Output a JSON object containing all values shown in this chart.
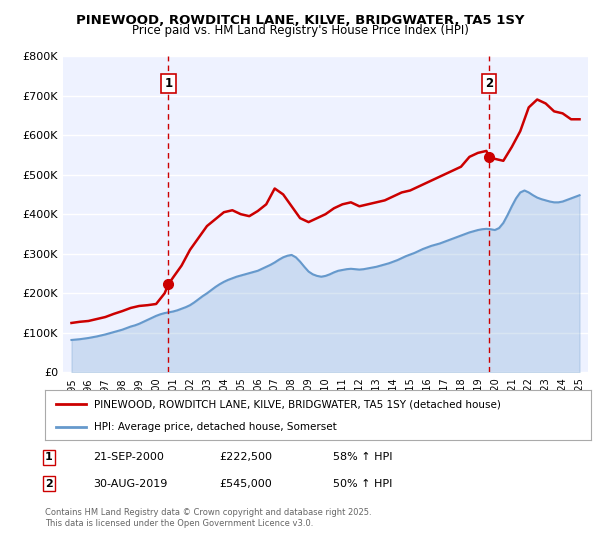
{
  "title": "PINEWOOD, ROWDITCH LANE, KILVE, BRIDGWATER, TA5 1SY",
  "subtitle": "Price paid vs. HM Land Registry's House Price Index (HPI)",
  "hpi_label": "HPI: Average price, detached house, Somerset",
  "property_label": "PINEWOOD, ROWDITCH LANE, KILVE, BRIDGWATER, TA5 1SY (detached house)",
  "footnote": "Contains HM Land Registry data © Crown copyright and database right 2025.\nThis data is licensed under the Open Government Licence v3.0.",
  "transaction1_date": "21-SEP-2000",
  "transaction1_price": "£222,500",
  "transaction1_hpi": "58% ↑ HPI",
  "transaction2_date": "30-AUG-2019",
  "transaction2_price": "£545,000",
  "transaction2_hpi": "50% ↑ HPI",
  "marker1_x": 2000.72,
  "marker1_y": 222500,
  "marker2_x": 2019.66,
  "marker2_y": 545000,
  "vline1_x": 2000.72,
  "vline2_x": 2019.66,
  "property_color": "#cc0000",
  "hpi_color": "#6699cc",
  "plot_bg_color": "#eef2ff",
  "ylim": [
    0,
    800000
  ],
  "xlim": [
    1994.5,
    2025.5
  ],
  "ytick_vals": [
    0,
    100000,
    200000,
    300000,
    400000,
    500000,
    600000,
    700000,
    800000
  ],
  "ytick_labels": [
    "£0",
    "£100K",
    "£200K",
    "£300K",
    "£400K",
    "£500K",
    "£600K",
    "£700K",
    "£800K"
  ],
  "xtick_vals": [
    1995,
    1996,
    1997,
    1998,
    1999,
    2000,
    2001,
    2002,
    2003,
    2004,
    2005,
    2006,
    2007,
    2008,
    2009,
    2010,
    2011,
    2012,
    2013,
    2014,
    2015,
    2016,
    2017,
    2018,
    2019,
    2020,
    2021,
    2022,
    2023,
    2024,
    2025
  ],
  "hpi_x": [
    1995.0,
    1995.25,
    1995.5,
    1995.75,
    1996.0,
    1996.25,
    1996.5,
    1996.75,
    1997.0,
    1997.25,
    1997.5,
    1997.75,
    1998.0,
    1998.25,
    1998.5,
    1998.75,
    1999.0,
    1999.25,
    1999.5,
    1999.75,
    2000.0,
    2000.25,
    2000.5,
    2000.75,
    2001.0,
    2001.25,
    2001.5,
    2001.75,
    2002.0,
    2002.25,
    2002.5,
    2002.75,
    2003.0,
    2003.25,
    2003.5,
    2003.75,
    2004.0,
    2004.25,
    2004.5,
    2004.75,
    2005.0,
    2005.25,
    2005.5,
    2005.75,
    2006.0,
    2006.25,
    2006.5,
    2006.75,
    2007.0,
    2007.25,
    2007.5,
    2007.75,
    2008.0,
    2008.25,
    2008.5,
    2008.75,
    2009.0,
    2009.25,
    2009.5,
    2009.75,
    2010.0,
    2010.25,
    2010.5,
    2010.75,
    2011.0,
    2011.25,
    2011.5,
    2011.75,
    2012.0,
    2012.25,
    2012.5,
    2012.75,
    2013.0,
    2013.25,
    2013.5,
    2013.75,
    2014.0,
    2014.25,
    2014.5,
    2014.75,
    2015.0,
    2015.25,
    2015.5,
    2015.75,
    2016.0,
    2016.25,
    2016.5,
    2016.75,
    2017.0,
    2017.25,
    2017.5,
    2017.75,
    2018.0,
    2018.25,
    2018.5,
    2018.75,
    2019.0,
    2019.25,
    2019.5,
    2019.75,
    2020.0,
    2020.25,
    2020.5,
    2020.75,
    2021.0,
    2021.25,
    2021.5,
    2021.75,
    2022.0,
    2022.25,
    2022.5,
    2022.75,
    2023.0,
    2023.25,
    2023.5,
    2023.75,
    2024.0,
    2024.25,
    2024.5,
    2024.75,
    2025.0
  ],
  "hpi_y": [
    82000,
    83000,
    84000,
    85500,
    87000,
    89000,
    91000,
    93500,
    96000,
    99000,
    102000,
    105000,
    108000,
    112000,
    116000,
    119000,
    123000,
    128000,
    133000,
    138000,
    143000,
    147000,
    150000,
    152000,
    154000,
    157000,
    161000,
    165000,
    170000,
    177000,
    185000,
    193000,
    200000,
    208000,
    216000,
    223000,
    229000,
    234000,
    238000,
    242000,
    245000,
    248000,
    251000,
    254000,
    257000,
    262000,
    267000,
    272000,
    278000,
    285000,
    291000,
    295000,
    297000,
    291000,
    280000,
    267000,
    255000,
    248000,
    244000,
    242000,
    244000,
    248000,
    253000,
    257000,
    259000,
    261000,
    262000,
    261000,
    260000,
    261000,
    263000,
    265000,
    267000,
    270000,
    273000,
    276000,
    280000,
    284000,
    289000,
    294000,
    298000,
    302000,
    307000,
    312000,
    316000,
    320000,
    323000,
    326000,
    330000,
    334000,
    338000,
    342000,
    346000,
    350000,
    354000,
    357000,
    360000,
    362000,
    363000,
    362000,
    360000,
    365000,
    378000,
    398000,
    420000,
    440000,
    455000,
    460000,
    455000,
    448000,
    442000,
    438000,
    435000,
    432000,
    430000,
    430000,
    432000,
    436000,
    440000,
    444000,
    448000
  ],
  "property_x": [
    1995.0,
    1995.5,
    1996.0,
    1996.5,
    1997.0,
    1997.5,
    1998.0,
    1998.5,
    1999.0,
    1999.5,
    2000.0,
    2000.5,
    2000.72,
    2001.0,
    2001.5,
    2002.0,
    2003.0,
    2004.0,
    2004.5,
    2005.0,
    2005.5,
    2006.0,
    2006.5,
    2007.0,
    2007.5,
    2008.0,
    2008.5,
    2009.0,
    2009.5,
    2010.0,
    2010.5,
    2011.0,
    2011.5,
    2012.0,
    2012.5,
    2013.0,
    2013.5,
    2014.0,
    2014.5,
    2015.0,
    2015.5,
    2016.0,
    2016.5,
    2017.0,
    2017.5,
    2018.0,
    2018.5,
    2019.0,
    2019.5,
    2019.66,
    2020.0,
    2020.5,
    2021.0,
    2021.5,
    2022.0,
    2022.5,
    2023.0,
    2023.5,
    2024.0,
    2024.5,
    2025.0
  ],
  "property_y": [
    125000,
    128000,
    130000,
    135000,
    140000,
    148000,
    155000,
    163000,
    168000,
    170000,
    173000,
    200000,
    222500,
    240000,
    270000,
    310000,
    370000,
    405000,
    410000,
    400000,
    395000,
    408000,
    425000,
    465000,
    450000,
    420000,
    390000,
    380000,
    390000,
    400000,
    415000,
    425000,
    430000,
    420000,
    425000,
    430000,
    435000,
    445000,
    455000,
    460000,
    470000,
    480000,
    490000,
    500000,
    510000,
    520000,
    545000,
    555000,
    560000,
    545000,
    540000,
    535000,
    570000,
    610000,
    670000,
    690000,
    680000,
    660000,
    655000,
    640000,
    640000
  ]
}
